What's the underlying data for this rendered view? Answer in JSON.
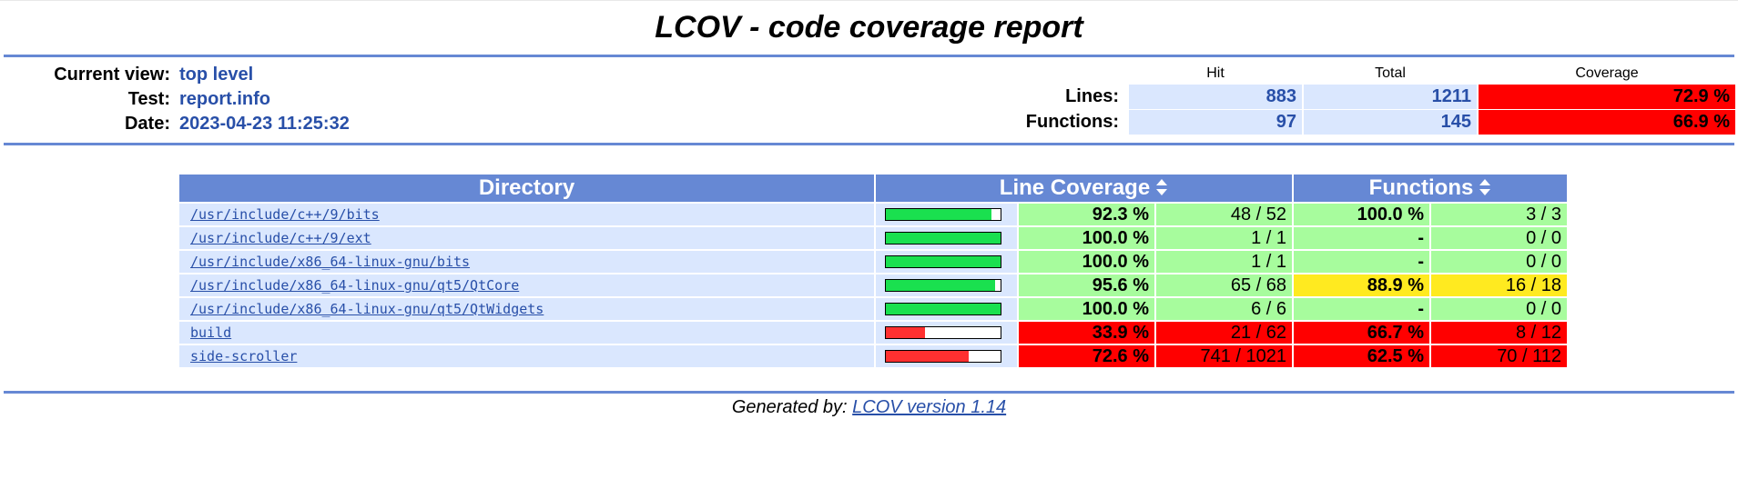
{
  "title": "LCOV - code coverage report",
  "header": {
    "current_view_label": "Current view:",
    "current_view_value": "top level",
    "test_label": "Test:",
    "test_value": "report.info",
    "date_label": "Date:",
    "date_value": "2023-04-23 11:25:32"
  },
  "summary": {
    "col_hit": "Hit",
    "col_total": "Total",
    "col_coverage": "Coverage",
    "lines_label": "Lines:",
    "lines_hit": "883",
    "lines_total": "1211",
    "lines_cov": "72.9 %",
    "functions_label": "Functions:",
    "functions_hit": "97",
    "functions_total": "145",
    "functions_cov": "66.9 %"
  },
  "table": {
    "col_directory": "Directory",
    "col_line_coverage": "Line Coverage",
    "col_functions": "Functions",
    "rows": [
      {
        "dir": "/usr/include/c++/9/bits",
        "bar": 0.923,
        "line_pct": "92.3 %",
        "line_cnt": "48 / 52",
        "fn_pct": "100.0 %",
        "fn_cnt": "3 / 3",
        "line_level": "hi",
        "fn_level": "hi"
      },
      {
        "dir": "/usr/include/c++/9/ext",
        "bar": 1.0,
        "line_pct": "100.0 %",
        "line_cnt": "1 / 1",
        "fn_pct": "-",
        "fn_cnt": "0 / 0",
        "line_level": "hi",
        "fn_level": "hi"
      },
      {
        "dir": "/usr/include/x86_64-linux-gnu/bits",
        "bar": 1.0,
        "line_pct": "100.0 %",
        "line_cnt": "1 / 1",
        "fn_pct": "-",
        "fn_cnt": "0 / 0",
        "line_level": "hi",
        "fn_level": "hi"
      },
      {
        "dir": "/usr/include/x86_64-linux-gnu/qt5/QtCore",
        "bar": 0.956,
        "line_pct": "95.6 %",
        "line_cnt": "65 / 68",
        "fn_pct": "88.9 %",
        "fn_cnt": "16 / 18",
        "line_level": "hi",
        "fn_level": "med"
      },
      {
        "dir": "/usr/include/x86_64-linux-gnu/qt5/QtWidgets",
        "bar": 1.0,
        "line_pct": "100.0 %",
        "line_cnt": "6 / 6",
        "fn_pct": "-",
        "fn_cnt": "0 / 0",
        "line_level": "hi",
        "fn_level": "hi"
      },
      {
        "dir": "build",
        "bar": 0.339,
        "line_pct": "33.9 %",
        "line_cnt": "21 / 62",
        "fn_pct": "66.7 %",
        "fn_cnt": "8 / 12",
        "line_level": "lo",
        "fn_level": "lo"
      },
      {
        "dir": "side-scroller",
        "bar": 0.726,
        "line_pct": "72.6 %",
        "line_cnt": "741 / 1021",
        "fn_pct": "62.5 %",
        "fn_cnt": "70 / 112",
        "line_level": "lo",
        "fn_level": "lo"
      }
    ]
  },
  "footer": {
    "generated_by": "Generated by:",
    "link": "LCOV version 1.14"
  },
  "colors": {
    "accent": "#6688d4",
    "hi": "#a7fc9d",
    "med": "#ffea20",
    "lo": "#ff0000",
    "bar_hi": "#1ae04f",
    "bar_lo": "#ff3030"
  }
}
